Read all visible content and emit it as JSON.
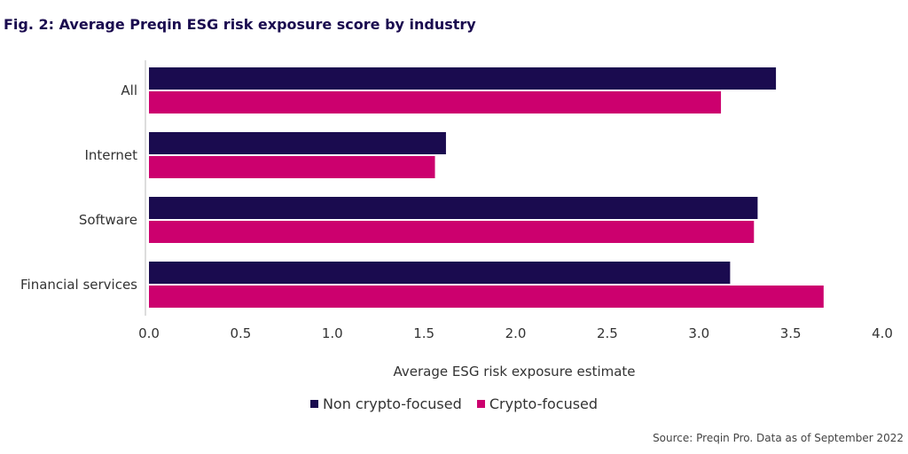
{
  "title": "Fig. 2: Average Preqin ESG risk exposure score by industry",
  "source": "Source: Preqin Pro. Data as of September 2022",
  "colors": {
    "non_crypto": "#1a0b4f",
    "crypto": "#cc006e"
  },
  "legend": [
    {
      "name": "Non crypto-focused",
      "color": "#1a0b4f"
    },
    {
      "name": "Crypto-focused",
      "color": "#cc006e"
    }
  ],
  "chart_data": {
    "type": "bar",
    "orientation": "horizontal",
    "categories": [
      "All",
      "Internet",
      "Software",
      "Financial services"
    ],
    "series": [
      {
        "name": "Non crypto-focused",
        "values": [
          3.42,
          1.62,
          3.32,
          3.17
        ]
      },
      {
        "name": "Crypto-focused",
        "values": [
          3.12,
          1.56,
          3.3,
          3.68
        ]
      }
    ],
    "title": "Fig. 2: Average Preqin ESG risk exposure score by industry",
    "xlabel": "Average ESG risk exposure estimate",
    "ylabel": "",
    "xlim": [
      0,
      4.0
    ],
    "xticks": [
      "0.0",
      "0.5",
      "1.0",
      "1.5",
      "2.0",
      "2.5",
      "3.0",
      "3.5",
      "4.0"
    ],
    "grid": false,
    "legend_position": "bottom"
  }
}
